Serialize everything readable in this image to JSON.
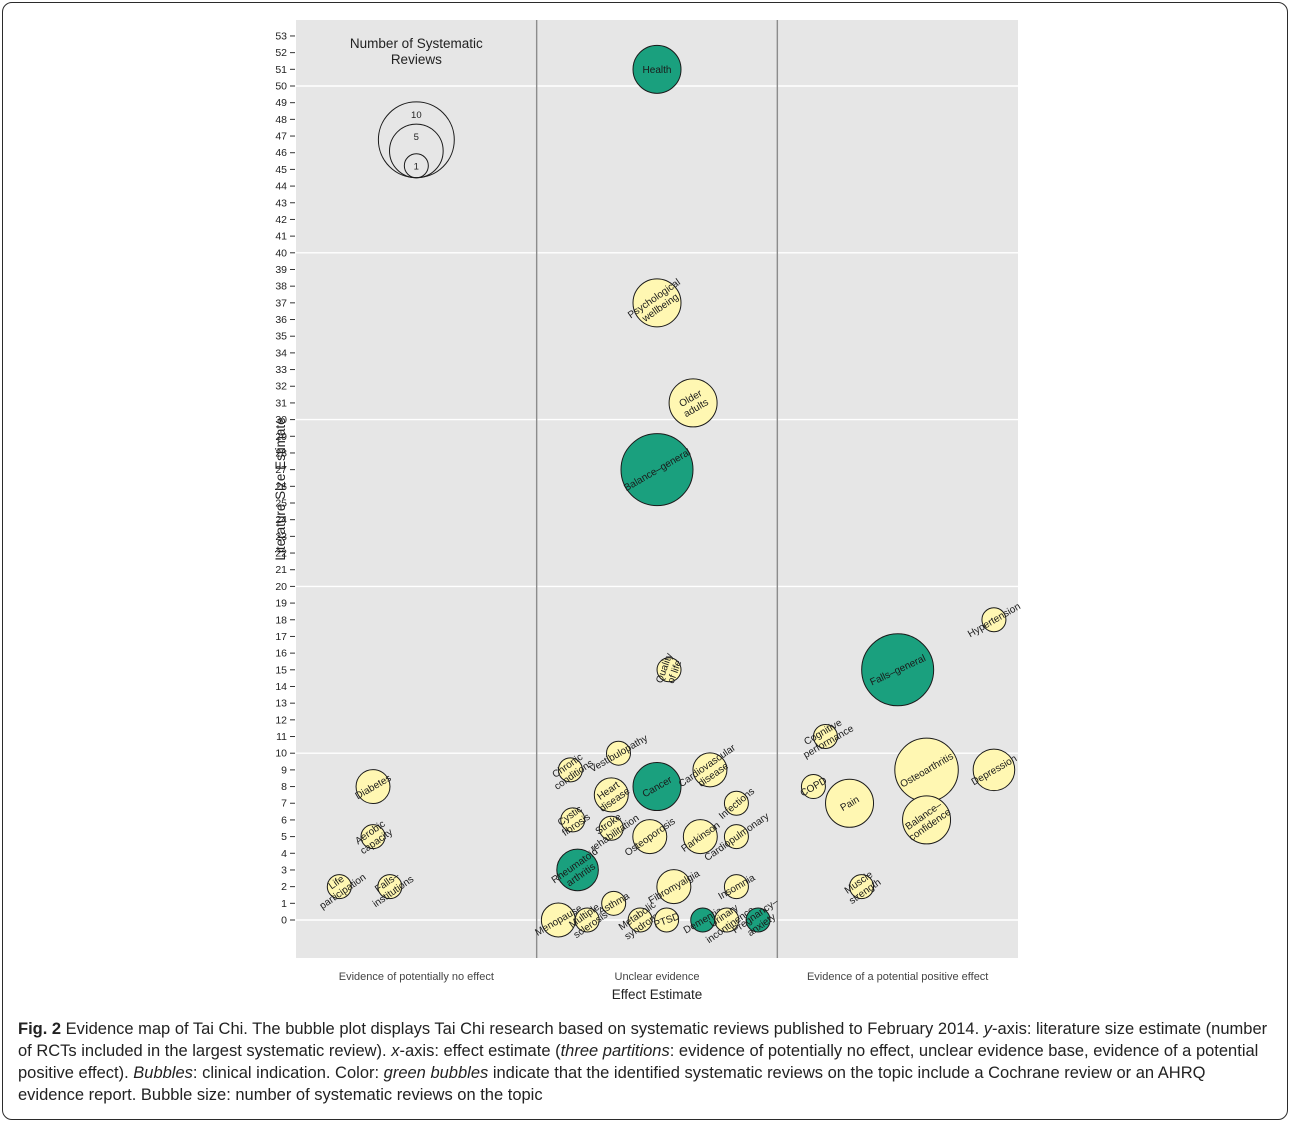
{
  "colors": {
    "panel": "#e6e6e6",
    "green": "#1aa07e",
    "yellow": "#fff7b2",
    "outline": "#1a1a1a",
    "divider": "#8c8c8c"
  },
  "chart_data": {
    "type": "scatter",
    "ylabel": "Literature Size Estimate",
    "xlabel": "Effect Estimate",
    "ylim": [
      -1,
      53.5
    ],
    "yticks": [
      0,
      1,
      2,
      3,
      4,
      5,
      6,
      7,
      8,
      9,
      10,
      11,
      12,
      13,
      14,
      15,
      16,
      17,
      18,
      19,
      20,
      21,
      22,
      23,
      24,
      25,
      26,
      27,
      28,
      29,
      30,
      31,
      32,
      33,
      34,
      35,
      36,
      37,
      38,
      39,
      40,
      41,
      42,
      43,
      44,
      45,
      46,
      47,
      48,
      49,
      50,
      51,
      52,
      53
    ],
    "y_gridlines": [
      0,
      10,
      20,
      30,
      40,
      50
    ],
    "x_categories": [
      "Evidence of potentially no effect",
      "Unclear evidence",
      "Evidence of a potential positive effect"
    ],
    "size_legend": {
      "title_line1": "Number of Systematic",
      "title_line2": "Reviews",
      "values": [
        10,
        5,
        1
      ]
    },
    "points": [
      {
        "label": "Health",
        "x": 1.5,
        "y": 51,
        "n": 4,
        "cochrane": true,
        "rot": 0
      },
      {
        "label": "Psychological wellbeing",
        "lines": [
          "Psychological",
          "wellbeing"
        ],
        "x": 1.5,
        "y": 37,
        "n": 4,
        "cochrane": false,
        "rot": -35
      },
      {
        "label": "Older adults",
        "lines": [
          "Older",
          "adults"
        ],
        "x": 1.65,
        "y": 31,
        "n": 4,
        "cochrane": false,
        "rot": -30
      },
      {
        "label": "Balance–general",
        "x": 1.5,
        "y": 27,
        "n": 9,
        "cochrane": true,
        "rot": -30
      },
      {
        "label": "Quality of life",
        "lines": [
          "Quality",
          "of life"
        ],
        "x": 1.55,
        "y": 15,
        "n": 1,
        "cochrane": false,
        "rot": -70
      },
      {
        "label": "Chronic conditions",
        "lines": [
          "Chronic",
          "conditions"
        ],
        "x": 1.14,
        "y": 9,
        "n": 1,
        "cochrane": false,
        "rot": -35
      },
      {
        "label": "Vestibulopathy",
        "x": 1.34,
        "y": 10,
        "n": 1,
        "cochrane": false,
        "rot": -30
      },
      {
        "label": "Cancer",
        "x": 1.5,
        "y": 8,
        "n": 4,
        "cochrane": true,
        "rot": -30
      },
      {
        "label": "Cardiovascular disease",
        "lines": [
          "Cardiovascular",
          "disease"
        ],
        "x": 1.72,
        "y": 9,
        "n": 2,
        "cochrane": false,
        "rot": -35
      },
      {
        "label": "Heart disease",
        "lines": [
          "Heart",
          "disease"
        ],
        "x": 1.31,
        "y": 7.5,
        "n": 2,
        "cochrane": false,
        "rot": -35
      },
      {
        "label": "Infections",
        "x": 1.83,
        "y": 7,
        "n": 1,
        "cochrane": false,
        "rot": -40
      },
      {
        "label": "Cystic fibrosis",
        "lines": [
          "Cystic",
          "fibrosis"
        ],
        "x": 1.15,
        "y": 6,
        "n": 1,
        "cochrane": false,
        "rot": -35
      },
      {
        "label": "Stroke rehabilitation",
        "lines": [
          "Stroke",
          "rehabilitation"
        ],
        "x": 1.31,
        "y": 5.5,
        "n": 1,
        "cochrane": false,
        "rot": -35
      },
      {
        "label": "Osteoporosis",
        "x": 1.47,
        "y": 5,
        "n": 2,
        "cochrane": false,
        "rot": -35
      },
      {
        "label": "Parkinson",
        "x": 1.68,
        "y": 5,
        "n": 2,
        "cochrane": false,
        "rot": -35
      },
      {
        "label": "Cardiopulmonary",
        "x": 1.83,
        "y": 5,
        "n": 1,
        "cochrane": false,
        "rot": -35
      },
      {
        "label": "Rheumatoid arthritis",
        "lines": [
          "Rheumatoid",
          "arthritis"
        ],
        "x": 1.17,
        "y": 3,
        "n": 3,
        "cochrane": true,
        "rot": -35
      },
      {
        "label": "Fibromyalgia",
        "x": 1.57,
        "y": 2,
        "n": 2,
        "cochrane": false,
        "rot": -30
      },
      {
        "label": "Insomnia",
        "x": 1.83,
        "y": 2,
        "n": 1,
        "cochrane": false,
        "rot": -30
      },
      {
        "label": "Menopause",
        "x": 1.09,
        "y": 0,
        "n": 2,
        "cochrane": false,
        "rot": -30
      },
      {
        "label": "Multiple sclerosis",
        "lines": [
          "Multiple",
          "sclerosis"
        ],
        "x": 1.21,
        "y": 0,
        "n": 1,
        "cochrane": false,
        "rot": -35
      },
      {
        "label": "Asthma",
        "x": 1.32,
        "y": 1,
        "n": 1,
        "cochrane": false,
        "rot": -30
      },
      {
        "label": "Metabolic syndrome",
        "lines": [
          "Metabolic",
          "syndrome"
        ],
        "x": 1.43,
        "y": 0,
        "n": 1,
        "cochrane": false,
        "rot": -35
      },
      {
        "label": "PTSD",
        "x": 1.54,
        "y": 0,
        "n": 1,
        "cochrane": false,
        "rot": -20
      },
      {
        "label": "Dementia",
        "x": 1.69,
        "y": 0,
        "n": 1,
        "cochrane": true,
        "rot": -30
      },
      {
        "label": "Urinary incontinence",
        "lines": [
          "Urinary",
          "incontinence"
        ],
        "x": 1.79,
        "y": 0,
        "n": 1,
        "cochrane": false,
        "rot": -35
      },
      {
        "label": "Pregnancy–anxiety",
        "lines": [
          "Pregnancy–",
          "anxiety"
        ],
        "x": 1.92,
        "y": 0,
        "n": 1,
        "cochrane": true,
        "rot": -35
      },
      {
        "label": "Diabetes",
        "x": 0.32,
        "y": 8,
        "n": 2,
        "cochrane": false,
        "rot": -30
      },
      {
        "label": "Aerobic capacity",
        "lines": [
          "Aerobic",
          "capacity"
        ],
        "x": 0.32,
        "y": 5,
        "n": 1,
        "cochrane": false,
        "rot": -35
      },
      {
        "label": "Life participation",
        "lines": [
          "Life",
          "participation"
        ],
        "x": 0.18,
        "y": 2,
        "n": 1,
        "cochrane": false,
        "rot": -35
      },
      {
        "label": "Falls–institutions",
        "lines": [
          "Falls–",
          "institutions"
        ],
        "x": 0.39,
        "y": 2,
        "n": 1,
        "cochrane": false,
        "rot": -35
      },
      {
        "label": "Falls–general",
        "x": 2.5,
        "y": 15,
        "n": 9,
        "cochrane": true,
        "rot": -25
      },
      {
        "label": "Hypertension",
        "x": 2.9,
        "y": 18,
        "n": 1,
        "cochrane": false,
        "rot": -30
      },
      {
        "label": "Cognitive performance",
        "lines": [
          "Cognitive",
          "performance"
        ],
        "x": 2.2,
        "y": 11,
        "n": 1,
        "cochrane": false,
        "rot": -30
      },
      {
        "label": "Osteoarthritis",
        "x": 2.62,
        "y": 9,
        "n": 7,
        "cochrane": false,
        "rot": -30
      },
      {
        "label": "Depression",
        "x": 2.9,
        "y": 9,
        "n": 3,
        "cochrane": false,
        "rot": -30
      },
      {
        "label": "COPD",
        "x": 2.15,
        "y": 8,
        "n": 1,
        "cochrane": false,
        "rot": -30
      },
      {
        "label": "Pain",
        "x": 2.3,
        "y": 7,
        "n": 4,
        "cochrane": false,
        "rot": -30
      },
      {
        "label": "Balance–confidence",
        "lines": [
          "Balance–",
          "confidence"
        ],
        "x": 2.62,
        "y": 6,
        "n": 4,
        "cochrane": false,
        "rot": -35
      },
      {
        "label": "Muscle strength",
        "lines": [
          "Muscle",
          "strength"
        ],
        "x": 2.35,
        "y": 2,
        "n": 1,
        "cochrane": false,
        "rot": -35
      }
    ]
  },
  "caption": {
    "fig_label": "Fig. 2",
    "s1": " Evidence map of Tai Chi. The bubble plot displays Tai Chi research based on systematic reviews published to February 2014. ",
    "y_axis_label": "y",
    "s2": "-axis: literature size estimate (number of RCTs included in the largest systematic review). ",
    "x_axis_label": "x",
    "s3": "-axis: effect estimate (",
    "partitions_term": "three partitions",
    "s4": ": evidence of potentially no effect, unclear evidence base, evidence of a potential positive effect). ",
    "bubbles_term": "Bubbles",
    "s5": ": clinical indication. Color: ",
    "green_term": "green bubbles",
    "s6": " indicate that the identified systematic reviews on the topic include a Cochrane review or an AHRQ evidence report. Bubble size: number of systematic reviews on the topic"
  }
}
